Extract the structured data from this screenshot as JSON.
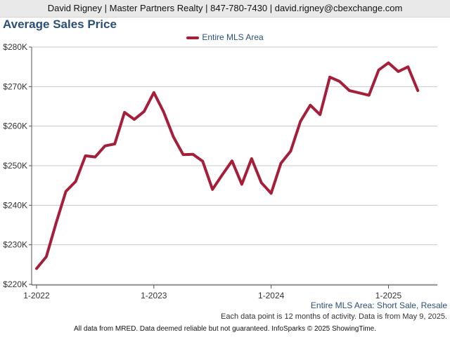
{
  "header": {
    "contact": "David Rigney | Master Partners Realty | 847-780-7430 | david.rigney@cbexchange.com"
  },
  "colors": {
    "series": "#a51f3a",
    "title": "#2b4f7a",
    "grid": "#c8c8c8"
  },
  "chart_data": {
    "type": "line",
    "title": "Average Sales Price",
    "subtitle": "Entire MLS Area: Short Sale, Resale",
    "note": "Each data point is 12 months of activity. Data is from May 9, 2025.",
    "footer": "All data from MRED. Data deemed reliable but not guaranteed. InfoSparks © 2025 ShowingTime.",
    "legend_position": "top-center",
    "grid": true,
    "xlabel": "",
    "ylabel": "",
    "ylim": [
      220000,
      280000
    ],
    "y_ticks": [
      220000,
      230000,
      240000,
      250000,
      260000,
      270000,
      280000
    ],
    "y_tick_labels": [
      "$220K",
      "$230K",
      "$240K",
      "$250K",
      "$260K",
      "$270K",
      "$280K"
    ],
    "x_tick_labels": [
      "1-2022",
      "1-2023",
      "1-2024",
      "1-2025"
    ],
    "x_tick_positions": [
      "2022-01",
      "2023-01",
      "2024-01",
      "2025-01"
    ],
    "x": [
      "2022-01",
      "2022-02",
      "2022-03",
      "2022-04",
      "2022-05",
      "2022-06",
      "2022-07",
      "2022-08",
      "2022-09",
      "2022-10",
      "2022-11",
      "2022-12",
      "2023-01",
      "2023-02",
      "2023-03",
      "2023-04",
      "2023-05",
      "2023-06",
      "2023-07",
      "2023-08",
      "2023-09",
      "2023-10",
      "2023-11",
      "2023-12",
      "2024-01",
      "2024-02",
      "2024-03",
      "2024-04",
      "2024-05",
      "2024-06",
      "2024-07",
      "2024-08",
      "2024-09",
      "2024-10",
      "2024-11",
      "2024-12",
      "2025-01",
      "2025-02",
      "2025-03",
      "2025-04"
    ],
    "series": [
      {
        "name": "Entire MLS Area",
        "values": [
          224000,
          227000,
          235500,
          243500,
          246000,
          252500,
          252200,
          255000,
          255500,
          263500,
          261700,
          263700,
          268500,
          263600,
          257300,
          252800,
          252900,
          251100,
          244000,
          247700,
          251200,
          245300,
          251800,
          245700,
          243000,
          250600,
          253700,
          261200,
          265300,
          262900,
          272400,
          271300,
          269000,
          268400,
          267800,
          274200,
          276000,
          273800,
          275000,
          269000
        ]
      }
    ]
  }
}
